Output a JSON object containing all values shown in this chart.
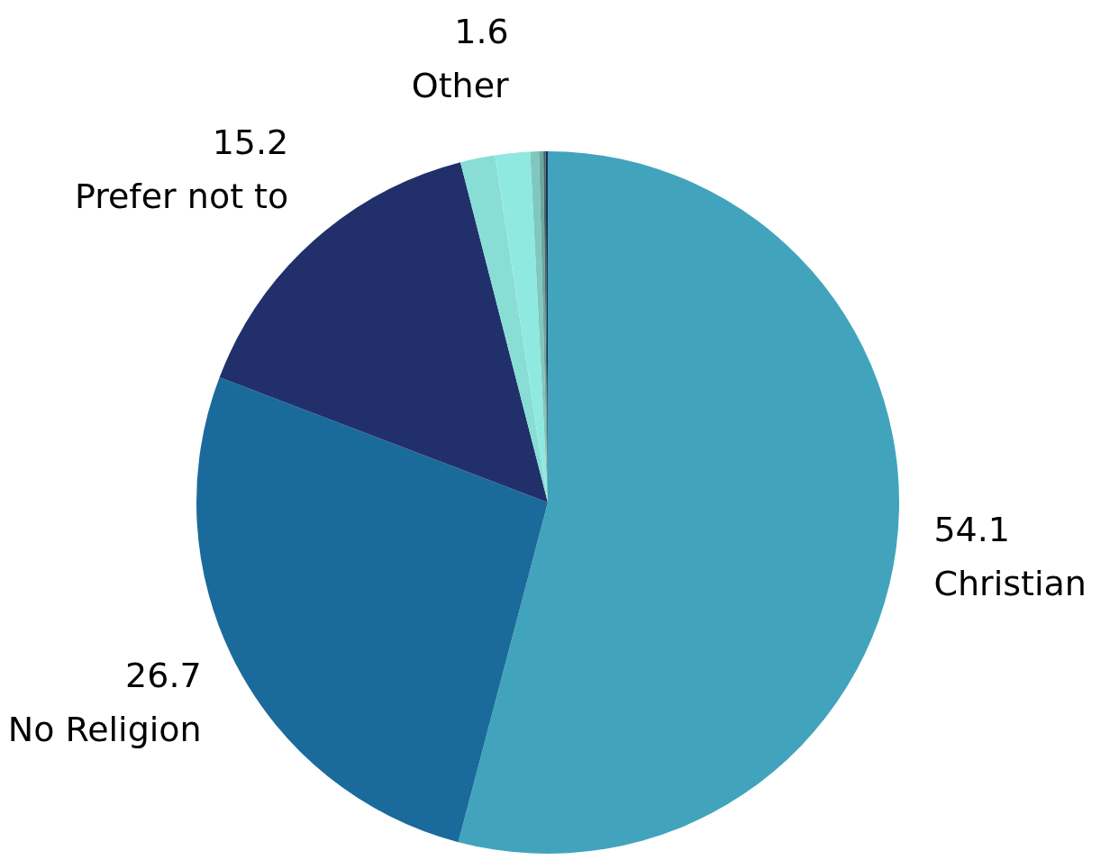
{
  "chart_data": {
    "type": "pie",
    "categories": [
      "Christian",
      "No Religion",
      "Prefer not to",
      null,
      "Other",
      null,
      null,
      null,
      null
    ],
    "values": [
      54.1,
      26.7,
      15.2,
      1.6,
      1.6,
      0.4,
      0.2,
      0.1,
      0.1
    ],
    "value_labels": [
      "54.1",
      "26.7",
      "15.2",
      null,
      "1.6",
      null,
      null,
      null,
      null
    ],
    "colors": [
      "#41a4bc",
      "#1a6b9b",
      "#21306b",
      "#88ded5",
      "#90e9e0",
      "#7fc8c0",
      "#6aa9a0",
      "#3f6a64",
      "#1f2f5a"
    ],
    "legend": false
  }
}
